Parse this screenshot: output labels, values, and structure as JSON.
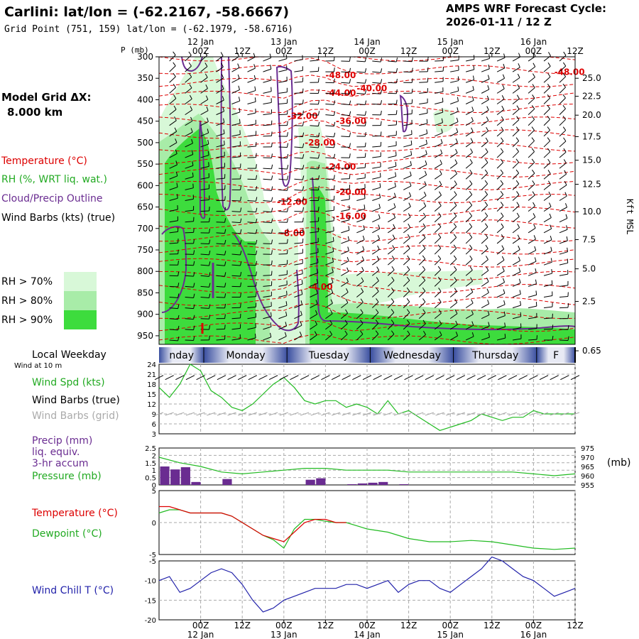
{
  "header": {
    "station_title": "Carlini:  lat/lon = (-62.2167, -58.6667)",
    "grid_point": "Grid Point (751, 159) lat/lon = (-62.1979, -58.6716)",
    "forecast_label": "AMPS WRF Forecast Cycle:",
    "forecast_cycle": "2026-01-11 / 12  Z"
  },
  "model": {
    "label": "Model Grid ΔX:",
    "value": "8.000 km"
  },
  "colors": {
    "temperature": "#dd0000",
    "rh": "#22bb22",
    "cloud_outline": "#6a2c91",
    "wind": "#000000",
    "wind_grid": "#aaaaaa",
    "wind_speed": "#22bb22",
    "precip": "#6a2c91",
    "pressure": "#22bb22",
    "dewpoint": "#22bb22",
    "wind_chill": "#2222aa",
    "rh70": "#d8f8d8",
    "rh80": "#a8eca8",
    "rh90": "#3ddc3d",
    "weekday_band": "#3a4fa0"
  },
  "legend_upper": {
    "temperature": "Temperature (°C)",
    "rh": "RH (%, WRT liq. wat.)",
    "cloud": "Cloud/Precip Outline",
    "wind": "Wind Barbs (kts) (true)",
    "rh70": "RH > 70%",
    "rh80": "RH > 80%",
    "rh90": "RH > 90%"
  },
  "legend_lower": {
    "weekday": "Local Weekday",
    "wind_10m": "Wind at 10 m",
    "wind_speed": "Wind Spd (kts)",
    "wind_true": "Wind Barbs (true)",
    "wind_grid": "Wind Barbs (grid)",
    "precip_1": "Precip (mm)",
    "precip_2": "liq. equiv.",
    "precip_3": "3-hr accum",
    "pressure": "Pressure (mb)",
    "pressure_unit": "(mb)",
    "temperature": "Temperature (°C)",
    "dewpoint": "Dewpoint (°C)",
    "wind_chill": "Wind Chill T (°C)"
  },
  "chart_data": {
    "type": "meteogram",
    "time_axis": {
      "start": "2026-01-11 12Z",
      "end": "2026-01-16 12Z",
      "tick_labels": [
        "00Z",
        "12Z",
        "00Z",
        "12Z",
        "00Z",
        "12Z",
        "00Z",
        "12Z",
        "00Z",
        "12Z"
      ],
      "tick_hours": [
        12,
        24,
        36,
        48,
        60,
        72,
        84,
        96,
        108,
        120
      ],
      "date_labels": [
        "12 Jan",
        "13 Jan",
        "14 Jan",
        "15 Jan",
        "16 Jan"
      ],
      "date_hours": [
        12,
        36,
        60,
        84,
        108
      ]
    },
    "weekdays": [
      {
        "label": "nday",
        "start": 0,
        "end": 13
      },
      {
        "label": "Monday",
        "start": 13,
        "end": 37
      },
      {
        "label": "Tuesday",
        "start": 37,
        "end": 61
      },
      {
        "label": "Wednesday",
        "start": 61,
        "end": 85
      },
      {
        "label": "Thursday",
        "start": 85,
        "end": 109
      },
      {
        "label": "F",
        "start": 109,
        "end": 120
      }
    ],
    "cross_section": {
      "pressure_axis_label": "P (mb)",
      "pressure_levels": [
        300,
        350,
        400,
        450,
        500,
        550,
        600,
        650,
        700,
        750,
        800,
        850,
        900,
        950
      ],
      "height_axis_label": "Kft MSL",
      "height_labels": [
        {
          "p": 350,
          "label": "25.0"
        },
        {
          "p": 392,
          "label": "22.5"
        },
        {
          "p": 436,
          "label": "20.0"
        },
        {
          "p": 486,
          "label": "17.5"
        },
        {
          "p": 541,
          "label": "15.0"
        },
        {
          "p": 597,
          "label": "12.5"
        },
        {
          "p": 661,
          "label": "10.0"
        },
        {
          "p": 726,
          "label": "7.5"
        },
        {
          "p": 794,
          "label": "5.0"
        },
        {
          "p": 870,
          "label": "2.5"
        },
        {
          "p": 985,
          "label": "0.65"
        }
      ],
      "temperature_labels": [
        {
          "hour": 48,
          "p": 350,
          "label": "-48.00"
        },
        {
          "hour": 114,
          "p": 342,
          "label": "-48.00"
        },
        {
          "hour": 57,
          "p": 380,
          "label": "-40.00"
        },
        {
          "hour": 48,
          "p": 391,
          "label": "-44.00"
        },
        {
          "hour": 51,
          "p": 456,
          "label": "-36.00"
        },
        {
          "hour": 37,
          "p": 445,
          "label": "-32.00"
        },
        {
          "hour": 42,
          "p": 507,
          "label": "-28.00"
        },
        {
          "hour": 48,
          "p": 563,
          "label": "-24.00"
        },
        {
          "hour": 51,
          "p": 622,
          "label": "-20.00"
        },
        {
          "hour": 51,
          "p": 678,
          "label": "-16.00"
        },
        {
          "hour": 34,
          "p": 645,
          "label": "-12.00"
        },
        {
          "hour": 35,
          "p": 718,
          "label": "-8.00"
        },
        {
          "hour": 43,
          "p": 843,
          "label": "-4.00"
        }
      ]
    },
    "wind_speed": {
      "ylim": [
        3,
        24
      ],
      "yticks": [
        3,
        6,
        9,
        12,
        15,
        18,
        21,
        24
      ],
      "hours": [
        0,
        3,
        6,
        9,
        12,
        15,
        18,
        21,
        24,
        27,
        30,
        33,
        36,
        39,
        42,
        45,
        48,
        51,
        54,
        57,
        60,
        63,
        66,
        69,
        72,
        75,
        78,
        81,
        84,
        87,
        90,
        93,
        96,
        99,
        102,
        105,
        108,
        111,
        114,
        117,
        120
      ],
      "values": [
        17,
        14,
        18,
        24,
        22,
        16,
        14,
        11,
        10,
        12,
        15,
        18,
        20,
        17,
        13,
        12,
        13,
        13,
        11,
        12,
        11,
        9,
        13,
        9,
        10,
        8,
        6,
        4,
        5,
        6,
        7,
        9,
        8,
        7,
        8,
        8,
        10,
        9,
        9,
        9,
        9
      ]
    },
    "pressure": {
      "ylim": [
        955,
        975
      ],
      "yticks": [
        955,
        960,
        965,
        970,
        975
      ],
      "hours": [
        0,
        6,
        12,
        18,
        24,
        30,
        36,
        42,
        48,
        54,
        60,
        66,
        72,
        78,
        84,
        90,
        96,
        102,
        108,
        114,
        120
      ],
      "values": [
        970,
        967,
        965,
        962,
        961,
        962,
        963,
        964,
        964,
        963,
        963,
        963,
        962,
        962,
        962,
        962,
        962,
        962,
        961,
        960,
        961
      ]
    },
    "precip": {
      "ylim": [
        0,
        2.5
      ],
      "yticks": [
        0,
        0.5,
        1,
        1.5,
        2,
        2.5
      ],
      "hours": [
        3,
        6,
        9,
        12,
        21,
        45,
        48,
        57,
        60,
        63,
        66,
        72
      ],
      "values": [
        1.25,
        1.05,
        1.2,
        0.2,
        0.4,
        0.35,
        0.45,
        0.05,
        0.1,
        0.15,
        0.2,
        0.05
      ]
    },
    "temperature": {
      "ylim": [
        -5,
        5
      ],
      "yticks": [
        -5,
        0,
        5
      ],
      "hours": [
        0,
        3,
        6,
        9,
        12,
        15,
        18,
        21,
        24,
        27,
        30,
        33,
        36,
        39,
        42,
        45,
        48,
        51,
        54
      ],
      "values": [
        2.5,
        2.5,
        2,
        1.5,
        1.5,
        1.5,
        1.5,
        1,
        0,
        -1,
        -2,
        -2.5,
        -3,
        -1.5,
        0,
        0.5,
        0.5,
        0,
        0
      ]
    },
    "dewpoint": {
      "hours": [
        0,
        3,
        6,
        9,
        12,
        15,
        18,
        21,
        24,
        27,
        30,
        33,
        36,
        39,
        42,
        45,
        48,
        51,
        54,
        60,
        66,
        72,
        78,
        84,
        90,
        96,
        102,
        108,
        114,
        120
      ],
      "values": [
        1.5,
        2,
        2,
        1.5,
        1.5,
        1.5,
        1.5,
        1,
        0,
        -1,
        -2,
        -2.7,
        -4,
        -1,
        0.5,
        0.5,
        0.2,
        0,
        0,
        -1,
        -1.5,
        -2.5,
        -3,
        -3,
        -2.8,
        -3,
        -3.5,
        -4,
        -4.2,
        -4
      ]
    },
    "wind_chill": {
      "ylim": [
        -20,
        -5
      ],
      "yticks": [
        -20,
        -15,
        -10,
        -5
      ],
      "hours": [
        0,
        3,
        6,
        9,
        12,
        15,
        18,
        21,
        24,
        27,
        30,
        33,
        36,
        39,
        42,
        45,
        48,
        51,
        54,
        57,
        60,
        63,
        66,
        69,
        72,
        75,
        78,
        81,
        84,
        87,
        90,
        93,
        96,
        99,
        102,
        105,
        108,
        111,
        114,
        117,
        120
      ],
      "values": [
        -10,
        -9,
        -13,
        -12,
        -10,
        -8,
        -7,
        -8,
        -11,
        -15,
        -18,
        -17,
        -15,
        -14,
        -13,
        -12,
        -12,
        -12,
        -11,
        -11,
        -12,
        -11,
        -10,
        -13,
        -11,
        -10,
        -10,
        -12,
        -13,
        -11,
        -9,
        -7,
        -4,
        -5,
        -7,
        -9,
        -10,
        -12,
        -14,
        -13,
        -12
      ]
    }
  }
}
